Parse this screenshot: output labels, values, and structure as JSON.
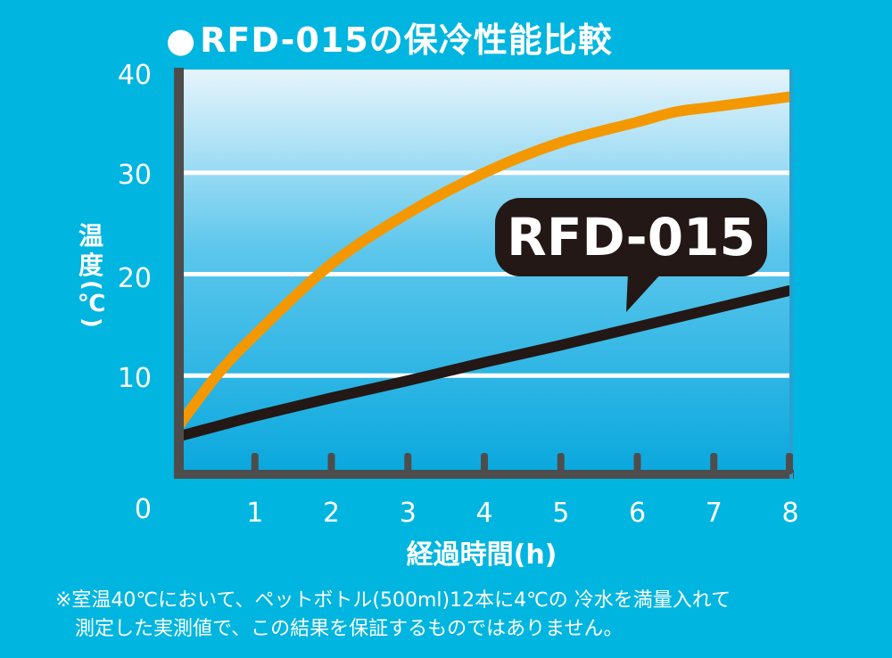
{
  "title": {
    "bullet": "●",
    "text": "RFD-015の保冷性能比較"
  },
  "note": {
    "line1": "※室温40℃において、ペットボトル(500ml)12本に4℃の 冷水を満量入れて",
    "line2": "測定した実測値で、この結果を保証するものではありません。"
  },
  "callout": {
    "label": "RFD-015"
  },
  "colors": {
    "background": "#00b5df",
    "comparison_line": "#f39800",
    "rfd_line": "#231815",
    "frame": "#4d4d4d",
    "callout_bg": "#231815"
  },
  "chart_data": {
    "type": "line",
    "title": "RFD-015の保冷性能比較",
    "xlabel": "経過時間(h)",
    "ylabel_chars": [
      "温",
      "度"
    ],
    "ylabel_unit": "(℃)",
    "xlim": [
      0,
      8
    ],
    "ylim": [
      0,
      40
    ],
    "x_ticks": [
      "1",
      "2",
      "3",
      "4",
      "5",
      "6",
      "7",
      "8"
    ],
    "y_ticks": [
      "0",
      "10",
      "20",
      "30",
      "40"
    ],
    "grid": true,
    "series": [
      {
        "name": "",
        "color": "#f39800",
        "x": [
          0,
          0.5,
          1,
          2,
          3,
          4,
          5,
          6,
          6.5,
          7,
          8
        ],
        "y": [
          5,
          10,
          14,
          21,
          26,
          30,
          33,
          35,
          36,
          36.5,
          37.5
        ]
      },
      {
        "name": "RFD-015",
        "color": "#231815",
        "x": [
          0,
          0.5,
          1,
          2,
          3,
          4,
          5,
          6,
          7,
          8
        ],
        "y": [
          4,
          5,
          6,
          7.8,
          9.5,
          11.3,
          13,
          14.8,
          16.6,
          18.4
        ]
      }
    ]
  }
}
